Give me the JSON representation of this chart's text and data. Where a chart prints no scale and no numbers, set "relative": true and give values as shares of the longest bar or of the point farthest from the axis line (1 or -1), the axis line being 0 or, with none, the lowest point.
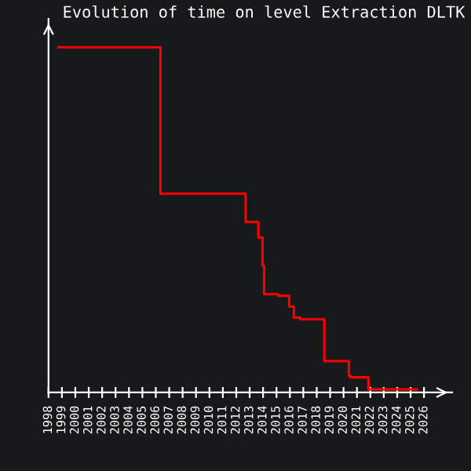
{
  "chart_data": {
    "type": "step",
    "title": "Evolution of time on level Extraction DLTK",
    "relative": true,
    "x": [
      1998.74,
      2006.35,
      2012.7,
      2013.65,
      2013.96,
      2014.08,
      2015.13,
      2015.95,
      2016.3,
      2016.77,
      2018.57,
      2020.4,
      2020.5,
      2021.85,
      2025.48
    ],
    "series": [
      {
        "color": "#ff0000",
        "values": [
          1.0,
          0.576,
          0.494,
          0.449,
          0.367,
          0.285,
          0.28,
          0.249,
          0.217,
          0.212,
          0.091,
          0.049,
          0.044,
          0.009,
          0.009
        ]
      }
    ],
    "xlim": [
      1998,
      2028.1
    ],
    "xticks": [
      1998,
      1999,
      2000,
      2001,
      2002,
      2003,
      2004,
      2005,
      2006,
      2007,
      2008,
      2009,
      2010,
      2011,
      2012,
      2013,
      2014,
      2015,
      2016,
      2017,
      2018,
      2019,
      2020,
      2021,
      2022,
      2023,
      2024,
      2025,
      2026
    ],
    "grid": false,
    "legend": false
  }
}
